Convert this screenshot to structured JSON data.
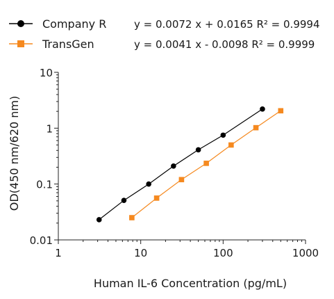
{
  "chart_data": {
    "type": "scatter",
    "xlabel": "Human IL-6 Concentration (pg/mL)",
    "ylabel": "OD(450 nm/620 nm)",
    "x_scale": "log",
    "y_scale": "log",
    "xlim": [
      1,
      1000
    ],
    "ylim": [
      0.01,
      10
    ],
    "x_ticks": [
      {
        "value": 1,
        "label": "1"
      },
      {
        "value": 10,
        "label": "10"
      },
      {
        "value": 100,
        "label": "100"
      },
      {
        "value": 1000,
        "label": "1000"
      }
    ],
    "y_ticks": [
      {
        "value": 0.01,
        "label": "0.01"
      },
      {
        "value": 0.1,
        "label": "0.1"
      },
      {
        "value": 1,
        "label": "1"
      },
      {
        "value": 10,
        "label": "10"
      }
    ],
    "grid": false,
    "legend_position": "top-left",
    "series": [
      {
        "name": "Company R",
        "color": "#000000",
        "marker": "circle",
        "equation": "y = 0.0072 x + 0.0165  R² = 0.9994",
        "x": [
          3.125,
          6.25,
          12.5,
          25,
          50,
          100,
          300
        ],
        "y": [
          0.023,
          0.051,
          0.1,
          0.21,
          0.41,
          0.75,
          2.2
        ]
      },
      {
        "name": "TransGen",
        "color": "#f5891f",
        "marker": "square",
        "equation": "y = 0.0041 x - 0.0098  R² = 0.9999",
        "x": [
          7.8,
          15.6,
          31.25,
          62.5,
          125,
          250,
          500
        ],
        "y": [
          0.025,
          0.056,
          0.12,
          0.235,
          0.5,
          1.02,
          2.05
        ]
      }
    ]
  }
}
